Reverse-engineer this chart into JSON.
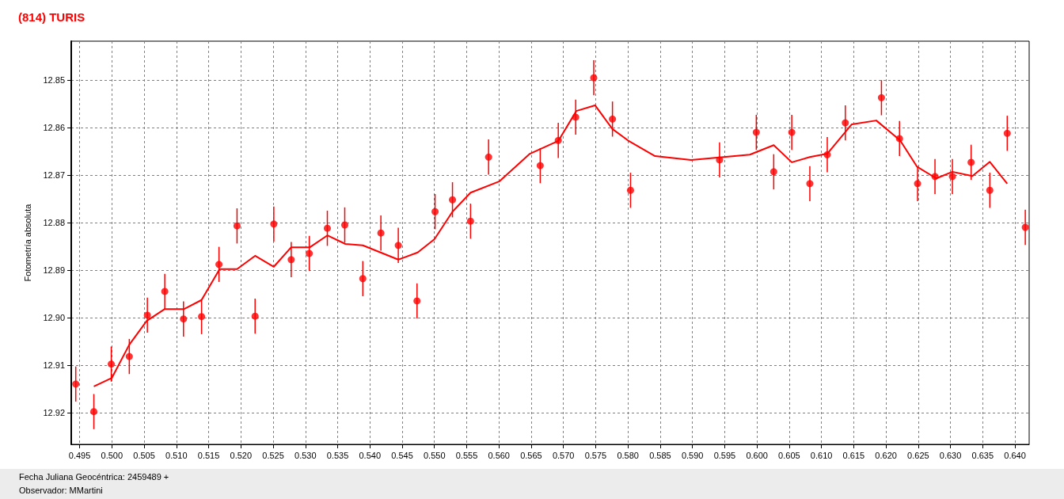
{
  "chart_data": {
    "type": "scatter",
    "title": "(814) TURIS",
    "xlabel": "Fecha Juliana Geocéntrica: 2459489 +",
    "ylabel": "Fotometría absoluta",
    "annotations": [
      "Observador: MMartini"
    ],
    "xlim": [
      0.4937,
      0.6422
    ],
    "ylim": [
      12.9267,
      12.8418
    ],
    "xticks": [
      0.495,
      {
        "value": 0.5,
        "label": "0.500"
      },
      0.505,
      {
        "value": 0.51,
        "label": "0.510"
      },
      0.515,
      {
        "value": 0.52,
        "label": "0.520"
      },
      0.525,
      {
        "value": 0.53,
        "label": "0.530"
      },
      0.535,
      {
        "value": 0.54,
        "label": "0.540"
      },
      0.545,
      {
        "value": 0.55,
        "label": "0.550"
      },
      0.555,
      {
        "value": 0.56,
        "label": "0.560"
      },
      0.565,
      {
        "value": 0.57,
        "label": "0.570"
      },
      0.575,
      {
        "value": 0.58,
        "label": "0.580"
      },
      0.585,
      {
        "value": 0.59,
        "label": "0.590"
      },
      0.595,
      {
        "value": 0.6,
        "label": "0.600"
      },
      0.605,
      {
        "value": 0.61,
        "label": "0.610"
      },
      0.615,
      {
        "value": 0.62,
        "label": "0.620"
      },
      0.625,
      {
        "value": 0.63,
        "label": "0.630"
      },
      0.635,
      {
        "value": 0.64,
        "label": "0.640"
      }
    ],
    "yticks": [
      12.85,
      12.86,
      12.87,
      12.88,
      12.89,
      {
        "value": 12.9,
        "label": "12.90"
      },
      12.91,
      12.92
    ],
    "grid": true,
    "series": [
      {
        "color": "#ff0000",
        "marker": "circle",
        "x": [
          0.4944,
          0.4972,
          0.4999,
          0.5027,
          0.5055,
          0.5082,
          0.5111,
          0.5139,
          0.5166,
          0.5194,
          0.5222,
          0.5251,
          0.5278,
          0.5306,
          0.5334,
          0.5361,
          0.5389,
          0.5417,
          0.5444,
          0.5473,
          0.5501,
          0.5528,
          0.5556,
          0.5584,
          0.5664,
          0.5692,
          0.5719,
          0.5747,
          0.5776,
          0.5804,
          0.5942,
          0.5999,
          0.6026,
          0.6054,
          0.6082,
          0.6109,
          0.6137,
          0.6193,
          0.6221,
          0.6249,
          0.6276,
          0.6303,
          0.6332,
          0.6361,
          0.6388,
          0.6416
        ],
        "values": [
          12.914,
          12.9198,
          12.9098,
          12.9082,
          12.8995,
          12.8945,
          12.9003,
          12.8998,
          12.8888,
          12.8807,
          12.8997,
          12.8803,
          12.8878,
          12.8865,
          12.8812,
          12.8805,
          12.8918,
          12.8822,
          12.8848,
          12.8965,
          12.8777,
          12.8752,
          12.8797,
          12.8662,
          12.868,
          12.8627,
          12.8578,
          12.8495,
          12.8582,
          12.8732,
          12.8668,
          12.861,
          12.8693,
          12.861,
          12.8718,
          12.8657,
          12.859,
          12.8537,
          12.8623,
          12.8718,
          12.8703,
          12.8703,
          12.8673,
          12.8732,
          12.8612,
          12.881
        ],
        "errors": [
          0.0037,
          0.0037,
          0.0037,
          0.0037,
          0.0037,
          0.0037,
          0.0037,
          0.0037,
          0.0037,
          0.0037,
          0.0037,
          0.0037,
          0.0037,
          0.0037,
          0.0037,
          0.0037,
          0.0037,
          0.0037,
          0.0037,
          0.0037,
          0.0037,
          0.0037,
          0.0037,
          0.0037,
          0.0037,
          0.0037,
          0.0037,
          0.0037,
          0.0037,
          0.0037,
          0.0037,
          0.0037,
          0.0037,
          0.0037,
          0.0037,
          0.0037,
          0.0037,
          0.0037,
          0.0037,
          0.0037,
          0.0037,
          0.0037,
          0.0037,
          0.0037,
          0.0037,
          0.0037
        ]
      },
      {
        "type": "line",
        "color": "#ff0000",
        "marker": "none",
        "line_style": "solid",
        "x": [
          0.4972,
          0.5,
          0.5027,
          0.5054,
          0.5082,
          0.5112,
          0.5139,
          0.5167,
          0.5194,
          0.5222,
          0.5251,
          0.5278,
          0.5307,
          0.5334,
          0.5362,
          0.5389,
          0.5444,
          0.5474,
          0.55,
          0.5528,
          0.5556,
          0.5601,
          0.5648,
          0.5692,
          0.572,
          0.5749,
          0.5776,
          0.58,
          0.5842,
          0.5898,
          0.5989,
          0.6026,
          0.6054,
          0.6082,
          0.6109,
          0.6147,
          0.6185,
          0.6222,
          0.6248,
          0.6278,
          0.6303,
          0.6334,
          0.6361,
          0.6388
        ],
        "values": [
          12.9145,
          12.9127,
          12.9057,
          12.9007,
          12.8982,
          12.8982,
          12.8963,
          12.8898,
          12.8898,
          12.887,
          12.8893,
          12.8852,
          12.8852,
          12.8827,
          12.8845,
          12.8848,
          12.8878,
          12.8863,
          12.8835,
          12.8777,
          12.8737,
          12.8713,
          12.8655,
          12.8628,
          12.8565,
          12.8553,
          12.8603,
          12.8627,
          12.866,
          12.8668,
          12.8657,
          12.8637,
          12.8673,
          12.8662,
          12.8655,
          12.8593,
          12.8585,
          12.8627,
          12.8682,
          12.8707,
          12.8693,
          12.8702,
          12.8672,
          12.8718
        ]
      }
    ]
  }
}
